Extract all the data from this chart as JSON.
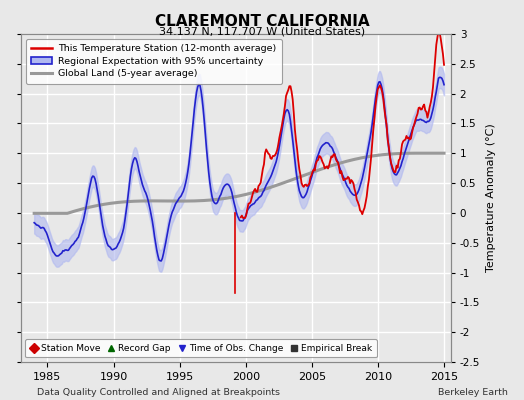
{
  "title": "CLAREMONT CALIFORNIA",
  "subtitle": "34.137 N, 117.707 W (United States)",
  "xlabel_bottom": "Data Quality Controlled and Aligned at Breakpoints",
  "xlabel_right": "Berkeley Earth",
  "ylabel": "Temperature Anomaly (°C)",
  "xlim": [
    1983,
    2015.5
  ],
  "ylim": [
    -2.5,
    3.0
  ],
  "yticks": [
    -2.5,
    -2,
    -1.5,
    -1,
    -0.5,
    0,
    0.5,
    1,
    1.5,
    2,
    2.5,
    3
  ],
  "xticks": [
    1985,
    1990,
    1995,
    2000,
    2005,
    2010,
    2015
  ],
  "bg_color": "#e8e8e8",
  "plot_bg": "#e8e8e8",
  "grid_color": "#ffffff",
  "red_line_color": "#dd0000",
  "blue_line_color": "#2222cc",
  "blue_fill_color": "#b0b8f0",
  "gray_line_color": "#999999",
  "legend_items": [
    {
      "label": "This Temperature Station (12-month average)"
    },
    {
      "label": "Regional Expectation with 95% uncertainty"
    },
    {
      "label": "Global Land (5-year average)"
    }
  ],
  "legend2_items": [
    {
      "label": "Station Move",
      "marker": "D",
      "color": "#cc0000"
    },
    {
      "label": "Record Gap",
      "marker": "^",
      "color": "#006600"
    },
    {
      "label": "Time of Obs. Change",
      "marker": "v",
      "color": "#2222cc"
    },
    {
      "label": "Empirical Break",
      "marker": "s",
      "color": "#333333"
    }
  ]
}
